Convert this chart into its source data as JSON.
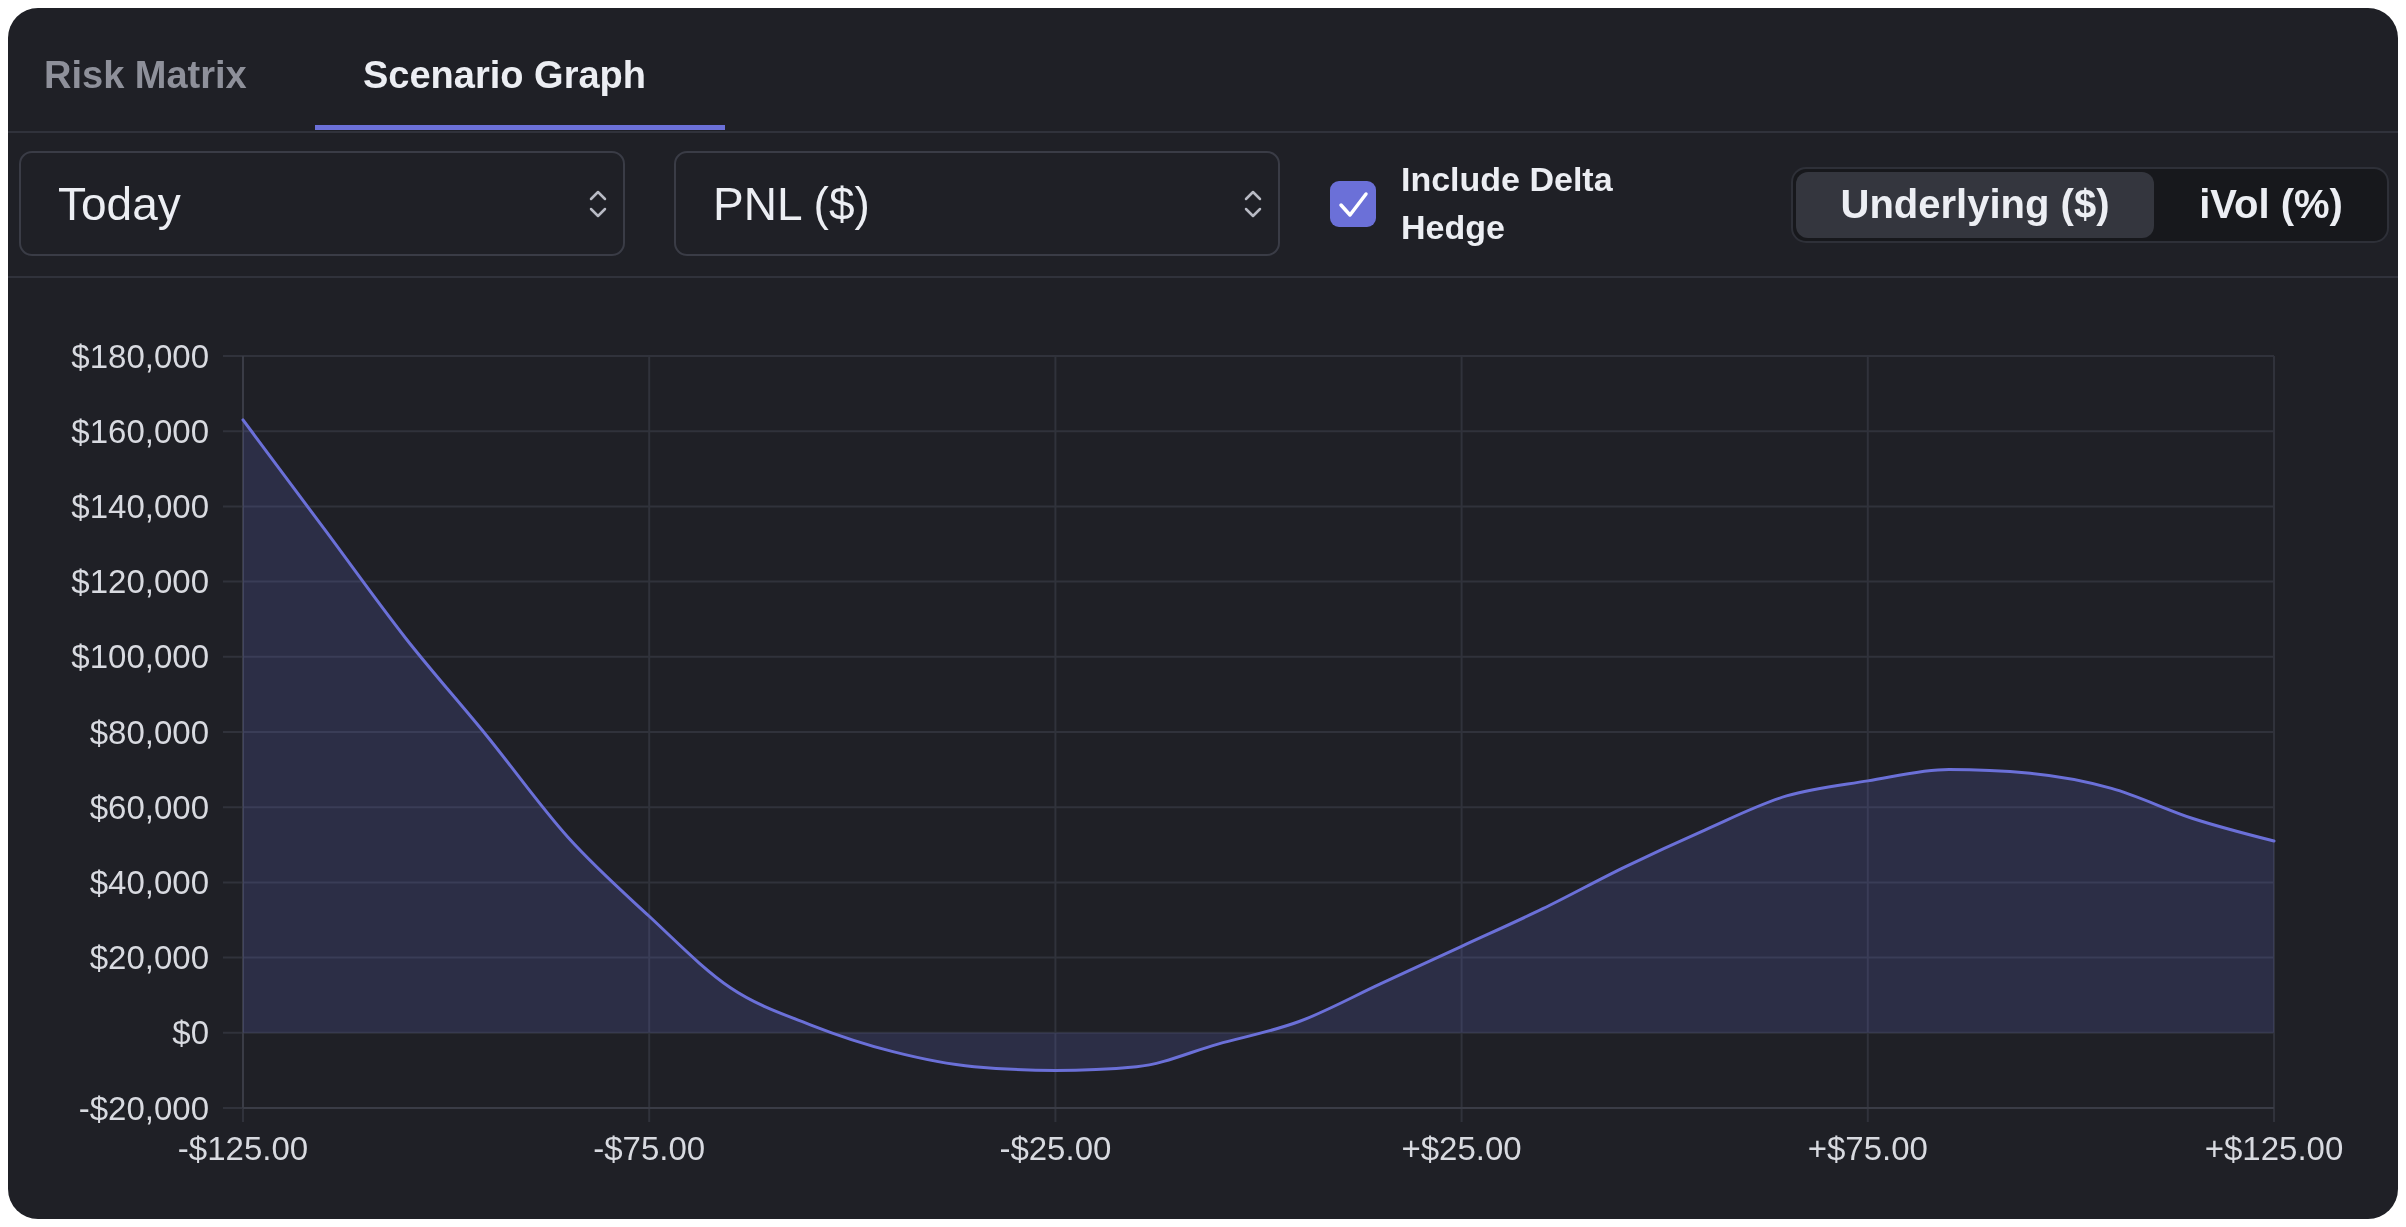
{
  "chart_data": {
    "type": "area",
    "x": [
      -125,
      -115,
      -105,
      -95,
      -85,
      -75,
      -65,
      -55,
      -45,
      -35,
      -25,
      -15,
      -5,
      5,
      15,
      25,
      35,
      45,
      55,
      65,
      75,
      85,
      95,
      105,
      115,
      125
    ],
    "series": [
      {
        "color": "#6b70d8",
        "values": [
          163000,
          134000,
          105000,
          79000,
          52000,
          31000,
          12000,
          2000,
          -5000,
          -9000,
          -10000,
          -9000,
          -3000,
          3000,
          13000,
          23000,
          33000,
          44000,
          54000,
          63000,
          67000,
          70000,
          69000,
          65000,
          57000,
          51000
        ]
      }
    ],
    "xlim": [
      -125,
      125
    ],
    "xticks": [
      {
        "value": -125,
        "label": "-$125.00"
      },
      {
        "value": -75,
        "label": "-$75.00"
      },
      {
        "value": -25,
        "label": "-$25.00"
      },
      {
        "value": 25,
        "label": "+$25.00"
      },
      {
        "value": 75,
        "label": "+$75.00"
      },
      {
        "value": 125,
        "label": "+$125.00"
      }
    ],
    "ylim": [
      -20000,
      180000
    ],
    "yticks": [
      {
        "value": -20000,
        "label": "-$20,000"
      },
      {
        "value": 0,
        "label": "$0"
      },
      {
        "value": 20000,
        "label": "$20,000"
      },
      {
        "value": 40000,
        "label": "$40,000"
      },
      {
        "value": 60000,
        "label": "$60,000"
      },
      {
        "value": 80000,
        "label": "$80,000"
      },
      {
        "value": 100000,
        "label": "$100,000"
      },
      {
        "value": 120000,
        "label": "$120,000"
      },
      {
        "value": 140000,
        "label": "$140,000"
      },
      {
        "value": 160000,
        "label": "$160,000"
      },
      {
        "value": 180000,
        "label": "$180,000"
      }
    ],
    "grid": true,
    "annotations": [
      "Risk Matrix",
      "Scenario Graph",
      "Today",
      "PNL ($)",
      "Include Delta Hedge",
      "Underlying ($)",
      "iVol (%)"
    ]
  }
}
